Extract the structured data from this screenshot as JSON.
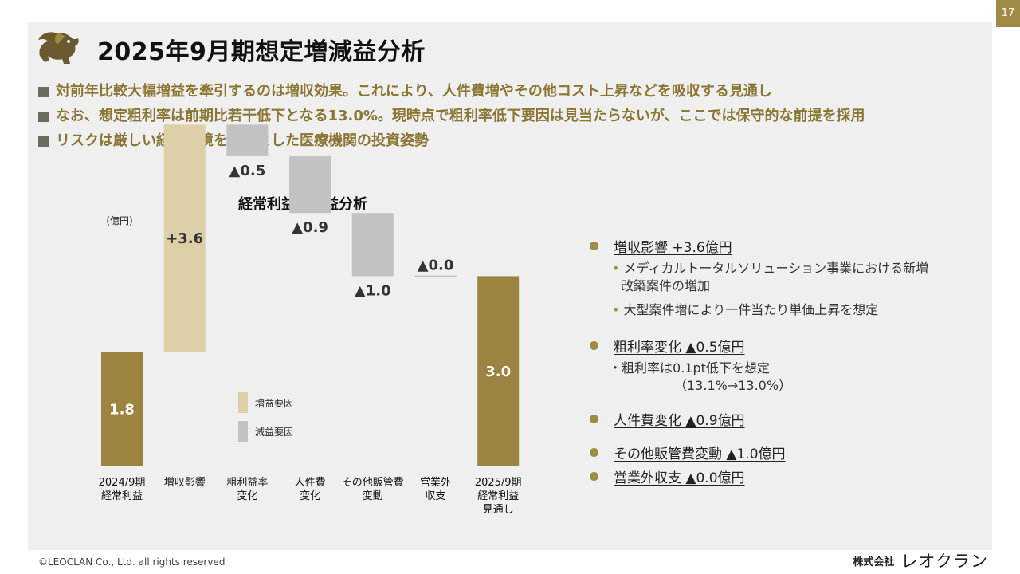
{
  "page": {
    "number": "17"
  },
  "header": {
    "title": "2025年9月期想定増減益分析"
  },
  "bullets": [
    "対前年比較大幅増益を牽引するのは増収効果。これにより、人件費増やその他コスト上昇などを吸収する見通し",
    "なお、想定粗利率は前期比若干低下となる13.0%。現時点で粗利率低下要因は見当たらないが、ここでは保守的な前提を採用",
    "リスクは厳しい経営環境を背景とした医療機関の投資姿勢"
  ],
  "chart_data": {
    "type": "bar",
    "title": "経常利益増減益分析",
    "unit_label": "(億円)",
    "categories": [
      [
        "2024/9期",
        "経常利益"
      ],
      [
        "増収影響"
      ],
      [
        "粗利益率",
        "変化"
      ],
      [
        "人件費",
        "変化"
      ],
      [
        "その他販管費",
        "変動"
      ],
      [
        "営業外",
        "収支"
      ],
      [
        "2025/9期",
        "経常利益",
        "見通し"
      ]
    ],
    "values": [
      1.8,
      3.6,
      -0.5,
      -0.9,
      -1.0,
      0.0,
      3.0
    ],
    "labels": [
      "1.8",
      "+3.6",
      "▲0.5",
      "▲0.9",
      "▲1.0",
      "▲0.0",
      "3.0"
    ],
    "kinds": [
      "total",
      "increase",
      "decrease",
      "decrease",
      "decrease",
      "decrease",
      "total"
    ],
    "legend": [
      {
        "label": "増益要因",
        "color": "#ddd0a8"
      },
      {
        "label": "減益要因",
        "color": "#c2c2c2"
      }
    ],
    "colors": {
      "total": "#9c8440",
      "increase": "#ddd0a8",
      "decrease": "#c2c2c2"
    }
  },
  "right_panel": {
    "items": [
      {
        "text": "増収影響  +3.6億円"
      },
      {
        "text": "粗利率変化  ▲0.5億円"
      },
      {
        "text": "人件費変化  ▲0.9億円"
      },
      {
        "text": "その他販管費変動  ▲1.0億円"
      },
      {
        "text": "営業外収支  ▲0.0億円"
      }
    ],
    "subs": [
      "メディカルトータルソリューション事業における新増",
      "改築案件の増加",
      "大型案件増により一件当たり単価上昇を想定",
      "粗利率は0.1pt低下を想定",
      "（13.1%→13.0%）"
    ]
  },
  "footer": {
    "copyright": "©LEOCLAN Co., Ltd. all rights reserved",
    "company_prefix": "株式会社",
    "company_name": "レオクラン"
  }
}
